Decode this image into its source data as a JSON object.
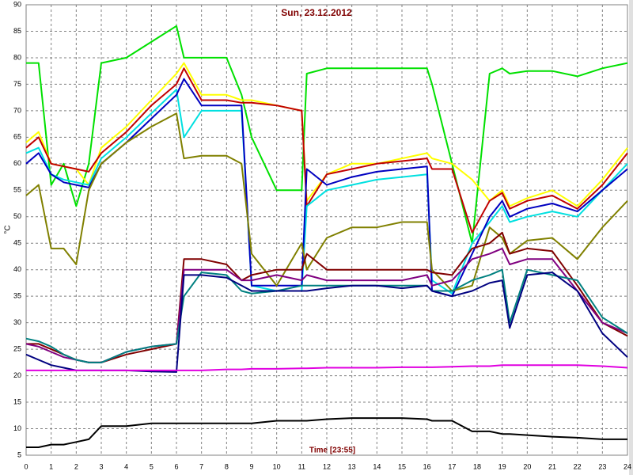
{
  "chart_data": {
    "type": "line",
    "title": "Sun, 23.12.2012",
    "x_label": "Time [23:55]",
    "y_label": "°C",
    "x": [
      0,
      0.5,
      1,
      1.5,
      2,
      2.5,
      3,
      4,
      5,
      6,
      6.3,
      7,
      8,
      8.6,
      9,
      10,
      11,
      11.2,
      12,
      13,
      14,
      15,
      16,
      16.2,
      17,
      17.8,
      18.5,
      19,
      19.3,
      20,
      21,
      22,
      23,
      24
    ],
    "xlim": [
      0,
      24
    ],
    "ylim": [
      5,
      90
    ],
    "xticks": [
      0,
      1,
      2,
      3,
      4,
      5,
      6,
      7,
      8,
      9,
      10,
      11,
      12,
      13,
      14,
      15,
      16,
      17,
      18,
      19,
      20,
      21,
      22,
      23,
      24
    ],
    "yticks": [
      5,
      10,
      15,
      20,
      25,
      30,
      35,
      40,
      45,
      50,
      55,
      60,
      65,
      70,
      75,
      80,
      85,
      90
    ],
    "grid": true,
    "series": [
      {
        "color": "#00e000",
        "values": [
          79,
          79,
          56,
          60,
          52,
          60,
          79,
          80,
          83,
          86,
          80,
          80,
          80,
          73,
          65,
          55,
          55,
          77,
          78,
          78,
          78,
          78,
          78,
          75,
          60,
          45,
          77,
          78,
          77,
          77.5,
          77.5,
          76.5,
          78,
          79
        ]
      },
      {
        "color": "#ffff00",
        "values": [
          64,
          66,
          60,
          59.5,
          59,
          56,
          63,
          67,
          72,
          77,
          79,
          73,
          73,
          72,
          72,
          71,
          70,
          53,
          58,
          60,
          60,
          61,
          62,
          61,
          60,
          57,
          53,
          55,
          52,
          53.5,
          55,
          52,
          57,
          63
        ]
      },
      {
        "color": "#c00000",
        "values": [
          63,
          65,
          60,
          59.5,
          59,
          58.5,
          62,
          66,
          71,
          75,
          78,
          72,
          72,
          71.5,
          71.5,
          71,
          70,
          52,
          58,
          59,
          60,
          60.5,
          61,
          59,
          59,
          47,
          53,
          54.5,
          51.5,
          53,
          54,
          51.5,
          56,
          62
        ]
      },
      {
        "color": "#00e0e0",
        "values": [
          62,
          63,
          58,
          57,
          56.5,
          56,
          61,
          65,
          69.5,
          74,
          65,
          70,
          70,
          70,
          37,
          36,
          36,
          52,
          55,
          56,
          57,
          57.5,
          58,
          38,
          35.5,
          45,
          49,
          52,
          49,
          50,
          51,
          50,
          55,
          60
        ]
      },
      {
        "color": "#0000c0",
        "values": [
          60,
          62,
          58,
          56.5,
          56,
          55.5,
          60,
          64,
          68.5,
          73,
          76,
          71,
          71,
          71,
          37,
          37,
          37,
          59,
          56,
          57.5,
          58.5,
          59,
          59.5,
          36,
          35,
          43,
          50,
          53,
          50,
          51.5,
          52.5,
          51,
          55,
          59
        ]
      },
      {
        "color": "#808000",
        "values": [
          54,
          56,
          44,
          44,
          41,
          55,
          60,
          64,
          67,
          69.5,
          61,
          61.5,
          61.5,
          60,
          43,
          37,
          45,
          40,
          46,
          48,
          48,
          49,
          49,
          40,
          36,
          37,
          48,
          46,
          43,
          45.5,
          46,
          42,
          48,
          53
        ]
      },
      {
        "color": "#800000",
        "values": [
          26,
          26,
          25,
          24,
          23,
          22.5,
          22.5,
          24,
          25,
          26,
          42,
          42,
          41,
          38,
          39,
          40,
          40,
          43,
          40,
          40,
          40,
          40,
          40,
          39.5,
          39,
          44,
          45,
          47,
          43,
          44,
          43.5,
          37,
          30,
          27.5
        ]
      },
      {
        "color": "#800080",
        "values": [
          26,
          25.5,
          24.5,
          23.5,
          23,
          22.5,
          22.5,
          24.5,
          25.5,
          26,
          40,
          40,
          40,
          38,
          38,
          39,
          38,
          39,
          38,
          38,
          38,
          38,
          39,
          37,
          38,
          42,
          43,
          44,
          41,
          42,
          42,
          36,
          30,
          28
        ]
      },
      {
        "color": "#008080",
        "values": [
          27,
          26.5,
          25.5,
          24,
          23,
          22.5,
          22.5,
          24.5,
          25.5,
          26,
          35,
          39.5,
          39,
          36,
          35.5,
          36,
          37,
          37,
          37,
          37,
          37,
          37,
          37,
          36,
          36,
          38,
          39,
          40,
          30,
          40,
          39,
          38,
          31,
          28
        ]
      },
      {
        "color": "#000080",
        "values": [
          24,
          23,
          22,
          21.5,
          21,
          21,
          21,
          21,
          20.8,
          20.7,
          39,
          39,
          38.5,
          37,
          36,
          36,
          36,
          36,
          36.5,
          37,
          37,
          36.5,
          37,
          36,
          35,
          36,
          37.5,
          38,
          29,
          39,
          39.5,
          36,
          28,
          23.5
        ]
      },
      {
        "color": "#e000e0",
        "values": [
          21,
          21,
          21,
          21,
          21,
          21,
          21,
          21,
          21,
          21,
          21,
          21,
          21.2,
          21.2,
          21.3,
          21.3,
          21.4,
          21.4,
          21.5,
          21.5,
          21.5,
          21.6,
          21.6,
          21.6,
          21.7,
          21.8,
          21.8,
          22,
          22,
          22,
          22,
          22,
          21.8,
          21.5
        ]
      },
      {
        "color": "#000000",
        "values": [
          6.5,
          6.5,
          7,
          7,
          7.5,
          8,
          10.5,
          10.5,
          11,
          11,
          11,
          11,
          11,
          11,
          11,
          11.5,
          11.5,
          11.5,
          11.8,
          12,
          12,
          12,
          11.8,
          11.5,
          11.5,
          9.5,
          9.5,
          9,
          9,
          8.8,
          8.5,
          8.3,
          8,
          8
        ]
      }
    ]
  }
}
